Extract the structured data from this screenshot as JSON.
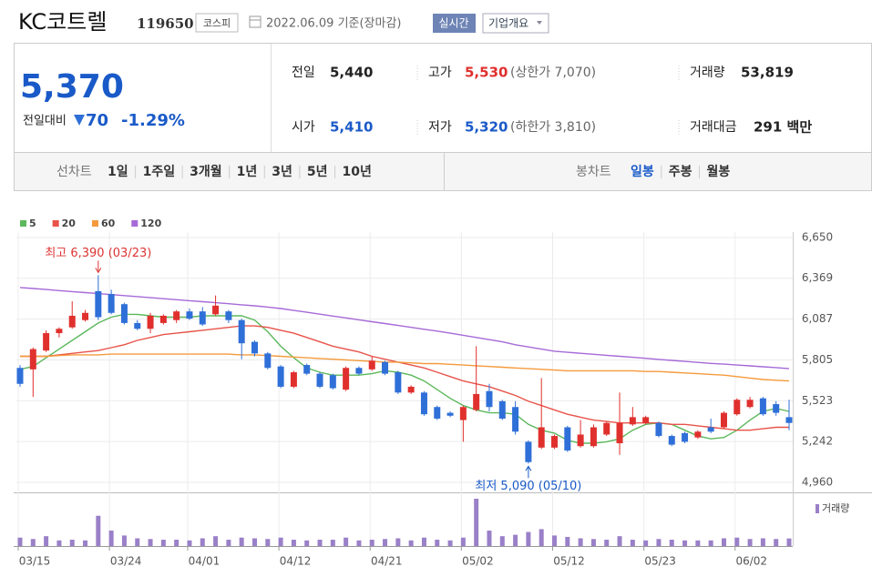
{
  "header": {
    "name": "KC코트렐",
    "code": "119650",
    "market": "코스피",
    "date": "2022.06.09 기준(장마감)",
    "buttons": [
      "실시간",
      "기업개요"
    ]
  },
  "summary": {
    "price": "5,370",
    "change_label": "전일대비",
    "change": "70",
    "change_rate": "-1.29%",
    "items": [
      {
        "label": "전일",
        "value": "5,440"
      },
      {
        "label": "고가",
        "value": "5,530",
        "note": "(상한가 7,070)"
      },
      {
        "label": "거래량",
        "value": "53,819"
      },
      {
        "label": "시가",
        "value": "5,410"
      },
      {
        "label": "저가",
        "value": "5,320",
        "note": "(하한가 3,810)"
      },
      {
        "label": "거래대금",
        "value": "291 백만"
      }
    ]
  },
  "tabs": {
    "line": {
      "label": "선차트",
      "items": [
        "1일",
        "1주일",
        "3개월",
        "1년",
        "3년",
        "5년",
        "10년"
      ]
    },
    "candle": {
      "label": "봉차트",
      "items": [
        "일봉",
        "주봉",
        "월봉"
      ]
    }
  },
  "chart_data": {
    "type": "candlestick",
    "categories": [
      "03/15",
      null,
      null,
      null,
      null,
      null,
      null,
      "03/24",
      null,
      null,
      null,
      null,
      null,
      "04/01",
      null,
      null,
      null,
      null,
      null,
      null,
      "04/12",
      null,
      null,
      null,
      null,
      null,
      null,
      "04/21",
      null,
      null,
      null,
      null,
      null,
      null,
      "05/02",
      null,
      null,
      null,
      null,
      null,
      null,
      "05/12",
      null,
      null,
      null,
      null,
      null,
      null,
      "05/23",
      null,
      null,
      null,
      null,
      null,
      null,
      "06/02",
      null,
      null,
      null,
      null
    ],
    "open": [
      5750,
      5740,
      5870,
      5990,
      6030,
      6080,
      6280,
      6260,
      6190,
      6060,
      6020,
      6060,
      6080,
      6140,
      6140,
      6120,
      6140,
      6080,
      5930,
      5850,
      5760,
      5620,
      5770,
      5710,
      5700,
      5600,
      5750,
      5740,
      5790,
      5720,
      5580,
      5580,
      5480,
      5440,
      5390,
      5460,
      5590,
      5520,
      5480,
      5240,
      5200,
      5200,
      5340,
      5210,
      5210,
      5290,
      5230,
      5360,
      5370,
      5370,
      5280,
      5300,
      5270,
      5340,
      5340,
      5430,
      5480,
      5540,
      5500,
      5410
    ],
    "high": [
      5770,
      5890,
      6010,
      6030,
      6210,
      6150,
      6390,
      6290,
      6200,
      6080,
      6130,
      6120,
      6150,
      6160,
      6170,
      6250,
      6150,
      6090,
      5940,
      5860,
      5770,
      5730,
      5780,
      5720,
      5710,
      5760,
      5760,
      5830,
      5800,
      5730,
      5630,
      5590,
      5490,
      5450,
      5490,
      5900,
      5640,
      5530,
      5520,
      5250,
      5680,
      5290,
      5350,
      5390,
      5360,
      5380,
      5580,
      5480,
      5420,
      5380,
      5290,
      5310,
      5320,
      5400,
      5450,
      5540,
      5550,
      5550,
      5520,
      5530
    ],
    "low": [
      5620,
      5550,
      5860,
      5960,
      6020,
      6070,
      6080,
      6120,
      6050,
      6010,
      5990,
      6050,
      6060,
      6080,
      6040,
      6110,
      6060,
      5810,
      5830,
      5740,
      5610,
      5610,
      5700,
      5610,
      5600,
      5590,
      5700,
      5730,
      5700,
      5570,
      5570,
      5420,
      5390,
      5410,
      5240,
      5450,
      5450,
      5390,
      5290,
      5090,
      5190,
      5190,
      5170,
      5200,
      5200,
      5280,
      5150,
      5350,
      5360,
      5270,
      5210,
      5230,
      5260,
      5300,
      5330,
      5420,
      5470,
      5420,
      5420,
      5320
    ],
    "close": [
      5640,
      5880,
      5990,
      6020,
      6110,
      6130,
      6100,
      6130,
      6060,
      6020,
      6110,
      6110,
      6140,
      6090,
      6050,
      6180,
      6080,
      5920,
      5850,
      5750,
      5620,
      5720,
      5710,
      5620,
      5610,
      5750,
      5710,
      5800,
      5710,
      5580,
      5620,
      5430,
      5400,
      5420,
      5480,
      5570,
      5480,
      5400,
      5310,
      5100,
      5340,
      5280,
      5180,
      5290,
      5340,
      5370,
      5370,
      5410,
      5410,
      5280,
      5220,
      5240,
      5310,
      5310,
      5440,
      5530,
      5530,
      5430,
      5440,
      5370
    ],
    "volume": [
      60000,
      50000,
      70000,
      40000,
      45000,
      40000,
      215000,
      110000,
      75000,
      55000,
      50000,
      45000,
      45000,
      40000,
      55000,
      70000,
      45000,
      60000,
      55000,
      50000,
      60000,
      45000,
      40000,
      45000,
      45000,
      60000,
      40000,
      45000,
      50000,
      55000,
      40000,
      60000,
      45000,
      40000,
      60000,
      336000,
      110000,
      70000,
      80000,
      100000,
      120000,
      75000,
      65000,
      55000,
      50000,
      45000,
      70000,
      45000,
      40000,
      50000,
      45000,
      40000,
      40000,
      40000,
      55000,
      60000,
      50000,
      55000,
      50000,
      53819
    ],
    "volume_label": "거래량",
    "up_color": "#e0302d",
    "down_color": "#2f6fd8",
    "volume_color": "#9a80c8",
    "ylim": [
      4960,
      6650
    ],
    "yticks": [
      {
        "value": 4960,
        "label": "4,960"
      },
      {
        "value": 5242,
        "label": "5,242"
      },
      {
        "value": 5523,
        "label": "5,523"
      },
      {
        "value": 5805,
        "label": "5,805"
      },
      {
        "value": 6087,
        "label": "6,087"
      },
      {
        "value": 6369,
        "label": "6,369"
      },
      {
        "value": 6650,
        "label": "6,650"
      }
    ],
    "grid": true,
    "series": [
      {
        "name": "5",
        "color": "#5cb85c",
        "values": [
          5740,
          5760,
          5820,
          5880,
          5940,
          6000,
          6060,
          6100,
          6120,
          6120,
          6110,
          6100,
          6100,
          6100,
          6110,
          6110,
          6110,
          6110,
          6080,
          6000,
          5900,
          5820,
          5750,
          5720,
          5700,
          5700,
          5700,
          5710,
          5730,
          5720,
          5700,
          5660,
          5600,
          5540,
          5490,
          5460,
          5440,
          5440,
          5430,
          5360,
          5320,
          5300,
          5250,
          5230,
          5230,
          5240,
          5260,
          5320,
          5360,
          5370,
          5360,
          5320,
          5280,
          5260,
          5270,
          5320,
          5390,
          5450,
          5470,
          5450
        ]
      },
      {
        "name": "20",
        "color": "#e8534a",
        "values": [
          5830,
          5830,
          5830,
          5840,
          5850,
          5860,
          5870,
          5890,
          5910,
          5940,
          5960,
          5980,
          5990,
          6000,
          6010,
          6020,
          6030,
          6040,
          6040,
          6030,
          6010,
          5990,
          5960,
          5930,
          5900,
          5880,
          5860,
          5830,
          5810,
          5790,
          5770,
          5750,
          5720,
          5690,
          5660,
          5640,
          5620,
          5590,
          5560,
          5520,
          5490,
          5460,
          5430,
          5410,
          5390,
          5380,
          5370,
          5370,
          5370,
          5370,
          5360,
          5360,
          5350,
          5340,
          5330,
          5320,
          5320,
          5330,
          5340,
          5340
        ]
      },
      {
        "name": "60",
        "color": "#f59a3c",
        "values": [
          5830,
          5830,
          5830,
          5835,
          5840,
          5840,
          5840,
          5845,
          5845,
          5845,
          5845,
          5845,
          5845,
          5845,
          5845,
          5845,
          5845,
          5840,
          5840,
          5835,
          5830,
          5825,
          5820,
          5815,
          5810,
          5805,
          5800,
          5795,
          5790,
          5790,
          5785,
          5780,
          5780,
          5775,
          5770,
          5765,
          5760,
          5755,
          5750,
          5745,
          5740,
          5735,
          5730,
          5730,
          5730,
          5730,
          5730,
          5730,
          5725,
          5725,
          5720,
          5715,
          5710,
          5705,
          5700,
          5690,
          5680,
          5670,
          5665,
          5660
        ]
      },
      {
        "name": "120",
        "color": "#a66ad8",
        "values": [
          6305,
          6298,
          6291,
          6284,
          6277,
          6270,
          6263,
          6256,
          6249,
          6242,
          6235,
          6228,
          6221,
          6214,
          6207,
          6200,
          6193,
          6186,
          6179,
          6170,
          6160,
          6147,
          6134,
          6121,
          6108,
          6095,
          6082,
          6069,
          6056,
          6043,
          6030,
          6017,
          6004,
          5990,
          5975,
          5960,
          5945,
          5930,
          5910,
          5895,
          5880,
          5865,
          5858,
          5851,
          5844,
          5837,
          5830,
          5823,
          5816,
          5809,
          5802,
          5795,
          5788,
          5781,
          5776,
          5770,
          5764,
          5758,
          5752,
          5745
        ]
      }
    ],
    "annotations": [
      {
        "text": "최고 6,390 (03/23)",
        "value": 6390,
        "kind": "high"
      },
      {
        "text": "최저 5,090 (05/10)",
        "value": 5090,
        "kind": "low"
      }
    ]
  }
}
